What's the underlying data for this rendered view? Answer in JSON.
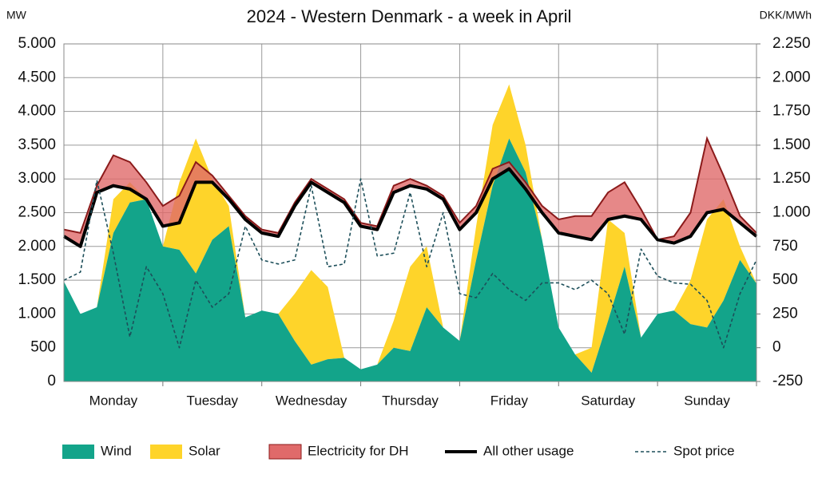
{
  "chart_data": {
    "type": "area",
    "title": "2024 - Western Denmark - a week in April",
    "y_unit": "MW",
    "y2_unit": "DKK/MWh",
    "categories": [
      "Monday",
      "Tuesday",
      "Wednesday",
      "Thursday",
      "Friday",
      "Saturday",
      "Sunday"
    ],
    "x": [
      0,
      4,
      8,
      12,
      16,
      20,
      24,
      28,
      32,
      36,
      40,
      44,
      48,
      52,
      56,
      60,
      64,
      68,
      72,
      76,
      80,
      84,
      88,
      92,
      96,
      100,
      104,
      108,
      112,
      116,
      120,
      124,
      128,
      132,
      136,
      140,
      144,
      148,
      152,
      156,
      160,
      164,
      168
    ],
    "xlim": [
      0,
      168
    ],
    "ylim": [
      0,
      5000
    ],
    "yticks": [
      0,
      500,
      {
        "value": 1000,
        "label": "1.000"
      },
      {
        "value": 1500,
        "label": "1.500"
      },
      {
        "value": 2000,
        "label": "2.000"
      },
      {
        "value": 2500,
        "label": "2.500"
      },
      {
        "value": 3000,
        "label": "3.000"
      },
      {
        "value": 3500,
        "label": "3.500"
      },
      {
        "value": 4000,
        "label": "4.000"
      },
      {
        "value": 4500,
        "label": "4.500"
      },
      {
        "value": 5000,
        "label": "5.000"
      }
    ],
    "y2lim": [
      -250,
      2250
    ],
    "y2ticks": [
      -250,
      0,
      250,
      500,
      750,
      {
        "value": 1000,
        "label": "1.000"
      },
      {
        "value": 1250,
        "label": "1.250"
      },
      {
        "value": 1500,
        "label": "1.500"
      },
      {
        "value": 1750,
        "label": "1.750"
      },
      {
        "value": 2000,
        "label": "2.000"
      },
      {
        "value": 2250,
        "label": "2.250"
      }
    ],
    "grid": true,
    "series": [
      {
        "name": "Wind",
        "color": "#13a48a",
        "style": "area",
        "values": [
          1480,
          1000,
          1100,
          2200,
          2650,
          2700,
          2000,
          1950,
          1600,
          2100,
          2300,
          950,
          1050,
          1000,
          600,
          250,
          330,
          350,
          180,
          250,
          500,
          450,
          1100,
          800,
          600,
          1800,
          2900,
          3600,
          3100,
          2100,
          800,
          400,
          130,
          900,
          1700,
          650,
          1000,
          1050,
          850,
          800,
          1200,
          1800,
          1450
        ]
      },
      {
        "name": "Solar",
        "color": "#fed42a",
        "style": "area",
        "stack_on": "Wind",
        "values": [
          0,
          0,
          0,
          500,
          300,
          0,
          0,
          1000,
          2000,
          900,
          300,
          0,
          0,
          0,
          700,
          1400,
          1070,
          0,
          0,
          0,
          400,
          1250,
          900,
          0,
          0,
          500,
          900,
          800,
          400,
          0,
          0,
          0,
          370,
          1500,
          500,
          0,
          0,
          0,
          650,
          1600,
          1500,
          200,
          0
        ]
      },
      {
        "name": "Electricity for DH",
        "color": "#e06a6a",
        "edge": "#8b1a1a",
        "style": "area",
        "stack_on": "All other usage",
        "values": [
          100,
          200,
          100,
          450,
          400,
          250,
          300,
          400,
          300,
          100,
          50,
          50,
          50,
          50,
          50,
          50,
          50,
          50,
          50,
          50,
          100,
          100,
          50,
          50,
          100,
          100,
          150,
          100,
          100,
          100,
          200,
          300,
          350,
          400,
          500,
          150,
          0,
          100,
          350,
          1100,
          500,
          100,
          50
        ]
      },
      {
        "name": "All other usage",
        "color": "#000000",
        "style": "line",
        "values": [
          2150,
          2000,
          2800,
          2900,
          2850,
          2700,
          2300,
          2350,
          2950,
          2950,
          2700,
          2400,
          2200,
          2150,
          2600,
          2950,
          2800,
          2650,
          2300,
          2250,
          2800,
          2900,
          2850,
          2700,
          2250,
          2500,
          3000,
          3150,
          2850,
          2500,
          2200,
          2150,
          2100,
          2400,
          2450,
          2400,
          2100,
          2050,
          2150,
          2500,
          2550,
          2350,
          2150
        ]
      },
      {
        "name": "Spot price",
        "color": "#1d4f5a",
        "style": "dashed",
        "axis": "y2",
        "values": [
          500,
          560,
          1240,
          700,
          80,
          600,
          400,
          0,
          500,
          300,
          400,
          900,
          650,
          620,
          650,
          1200,
          600,
          620,
          1250,
          680,
          700,
          1150,
          600,
          1000,
          400,
          370,
          550,
          430,
          350,
          480,
          480,
          430,
          500,
          400,
          100,
          730,
          530,
          480,
          470,
          350,
          0,
          400,
          650
        ]
      }
    ]
  }
}
